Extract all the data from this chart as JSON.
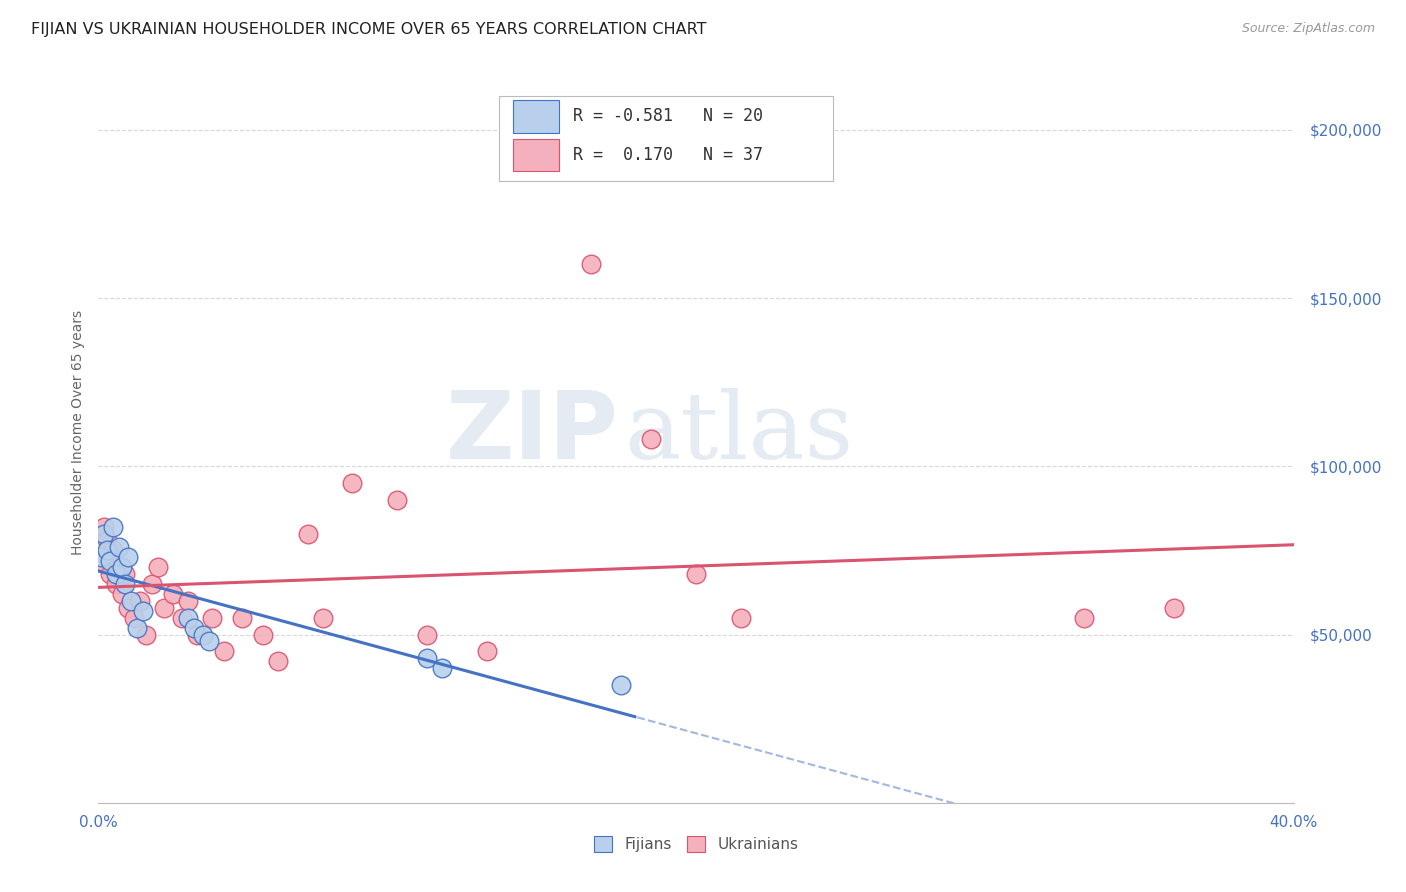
{
  "title": "FIJIAN VS UKRAINIAN HOUSEHOLDER INCOME OVER 65 YEARS CORRELATION CHART",
  "source": "Source: ZipAtlas.com",
  "ylabel": "Householder Income Over 65 years",
  "xlim": [
    0.0,
    0.4
  ],
  "ylim": [
    0,
    220000
  ],
  "yticks": [
    50000,
    100000,
    150000,
    200000
  ],
  "ytick_labels": [
    "$50,000",
    "$100,000",
    "$150,000",
    "$200,000"
  ],
  "xticks": [
    0.0,
    0.1,
    0.2,
    0.3,
    0.4
  ],
  "xtick_labels": [
    "0.0%",
    "",
    "",
    "",
    "40.0%"
  ],
  "background_color": "#ffffff",
  "grid_color": "#d8d8d8",
  "fijian_color": "#b8d0eb",
  "ukrainian_color": "#f4b0bc",
  "fijian_line_color": "#4472c4",
  "ukrainian_line_color": "#d9546e",
  "legend_fijian_R": "-0.581",
  "legend_fijian_N": "20",
  "legend_ukrainian_R": "0.170",
  "legend_ukrainian_N": "37",
  "fijian_x": [
    0.001,
    0.002,
    0.003,
    0.004,
    0.005,
    0.006,
    0.007,
    0.008,
    0.009,
    0.01,
    0.011,
    0.013,
    0.015,
    0.03,
    0.032,
    0.035,
    0.037,
    0.11,
    0.115,
    0.175
  ],
  "fijian_y": [
    73000,
    80000,
    75000,
    72000,
    82000,
    68000,
    76000,
    70000,
    65000,
    73000,
    60000,
    52000,
    57000,
    55000,
    52000,
    50000,
    48000,
    43000,
    40000,
    35000
  ],
  "ukrainian_x": [
    0.001,
    0.002,
    0.003,
    0.004,
    0.005,
    0.006,
    0.007,
    0.008,
    0.009,
    0.01,
    0.012,
    0.014,
    0.016,
    0.018,
    0.02,
    0.022,
    0.025,
    0.028,
    0.03,
    0.033,
    0.038,
    0.042,
    0.048,
    0.055,
    0.06,
    0.07,
    0.075,
    0.085,
    0.1,
    0.11,
    0.13,
    0.165,
    0.185,
    0.2,
    0.215,
    0.33,
    0.36
  ],
  "ukrainian_y": [
    72000,
    82000,
    78000,
    68000,
    75000,
    65000,
    70000,
    62000,
    68000,
    58000,
    55000,
    60000,
    50000,
    65000,
    70000,
    58000,
    62000,
    55000,
    60000,
    50000,
    55000,
    45000,
    55000,
    50000,
    42000,
    80000,
    55000,
    95000,
    90000,
    50000,
    45000,
    160000,
    108000,
    68000,
    55000,
    55000,
    58000
  ],
  "watermark_zip": "ZIP",
  "watermark_atlas": "atlas",
  "title_fontsize": 11.5,
  "label_fontsize": 10,
  "tick_fontsize": 11,
  "source_fontsize": 9,
  "legend_fontsize": 12,
  "marker_size": 180
}
